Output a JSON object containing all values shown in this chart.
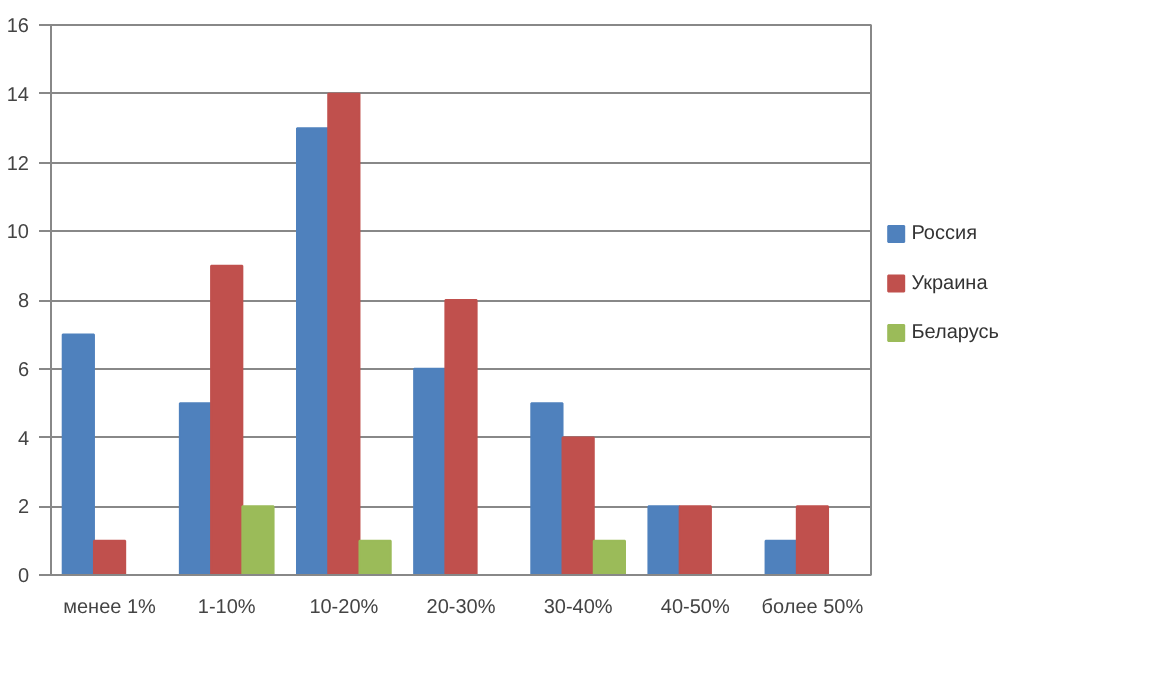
{
  "chart_data": {
    "type": "bar",
    "categories": [
      "менее 1%",
      "1-10%",
      "10-20%",
      "20-30%",
      "30-40%",
      "40-50%",
      "более 50%"
    ],
    "series": [
      {
        "name": "Россия",
        "color": "#4f81bd",
        "values": [
          7,
          5,
          13,
          6,
          5,
          2,
          1
        ]
      },
      {
        "name": "Украина",
        "color": "#c0504d",
        "values": [
          1,
          9,
          14,
          8,
          4,
          2,
          2
        ]
      },
      {
        "name": "Беларусь",
        "color": "#9bbb59",
        "values": [
          0,
          2,
          1,
          0,
          1,
          0,
          0
        ]
      }
    ],
    "ylim": [
      0,
      16
    ],
    "yticks": [
      0,
      2,
      4,
      6,
      8,
      10,
      12,
      14,
      16
    ],
    "grid": "y",
    "legend": "right"
  }
}
